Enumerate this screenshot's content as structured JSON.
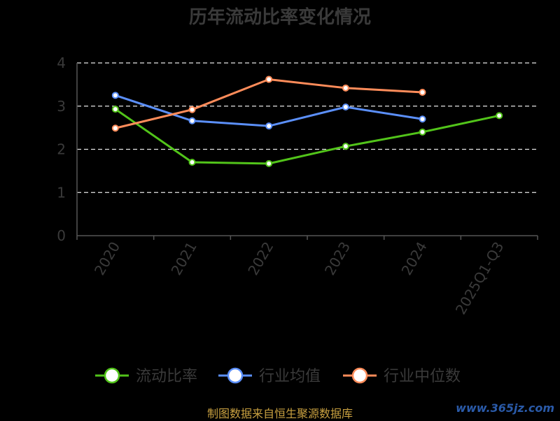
{
  "chart_data": {
    "type": "line",
    "title": "历年流动比率变化情况",
    "categories": [
      "2020",
      "2021",
      "2022",
      "2023",
      "2024",
      "2025Q1-Q3"
    ],
    "ylim": [
      0,
      4
    ],
    "yticks": [
      "0",
      "1",
      "2",
      "3",
      "4"
    ],
    "grid": true,
    "legend_position": "bottom",
    "series": [
      {
        "name": "流动比率",
        "color": "#52c41a",
        "values": [
          2.93,
          1.7,
          1.67,
          2.07,
          2.4,
          2.78
        ]
      },
      {
        "name": "行业均值",
        "color": "#5b8ff9",
        "values": [
          3.25,
          2.66,
          2.54,
          2.98,
          2.7,
          null
        ]
      },
      {
        "name": "行业中位数",
        "color": "#ff8c5a",
        "values": [
          2.49,
          2.92,
          3.62,
          3.42,
          3.32,
          null
        ]
      }
    ]
  },
  "footer": {
    "source": "制图数据来自恒生聚源数据库",
    "watermark": "www.365jz.com"
  }
}
